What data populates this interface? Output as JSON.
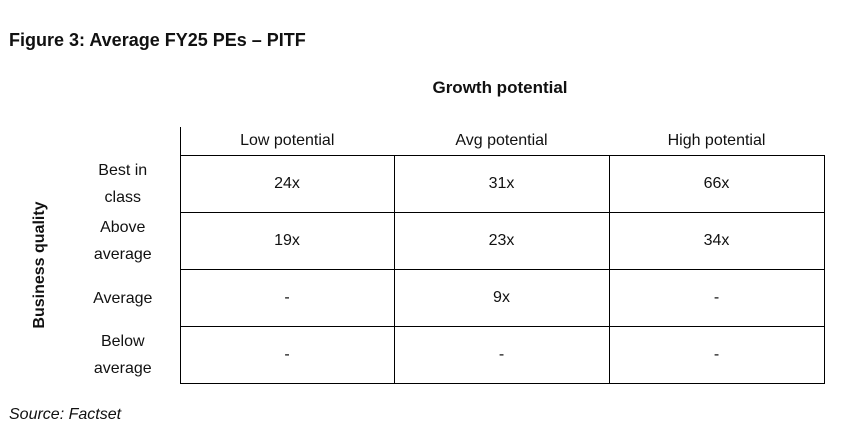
{
  "figure_title": "Figure 3: Average FY25 PEs – PITF",
  "column_group_label": "Growth potential",
  "row_group_label": "Business quality",
  "columns": [
    "Low potential",
    "Avg potential",
    "High potential"
  ],
  "rows": [
    {
      "label_line1": "Best in",
      "label_line2": "class",
      "values": [
        "24x",
        "31x",
        "66x"
      ]
    },
    {
      "label_line1": "Above",
      "label_line2": "average",
      "values": [
        "19x",
        "23x",
        "34x"
      ]
    },
    {
      "label_line1": "Average",
      "label_line2": "",
      "values": [
        "-",
        "9x",
        "-"
      ]
    },
    {
      "label_line1": "Below",
      "label_line2": "average",
      "values": [
        "-",
        "-",
        "-"
      ]
    }
  ],
  "source": "Source: Factset"
}
